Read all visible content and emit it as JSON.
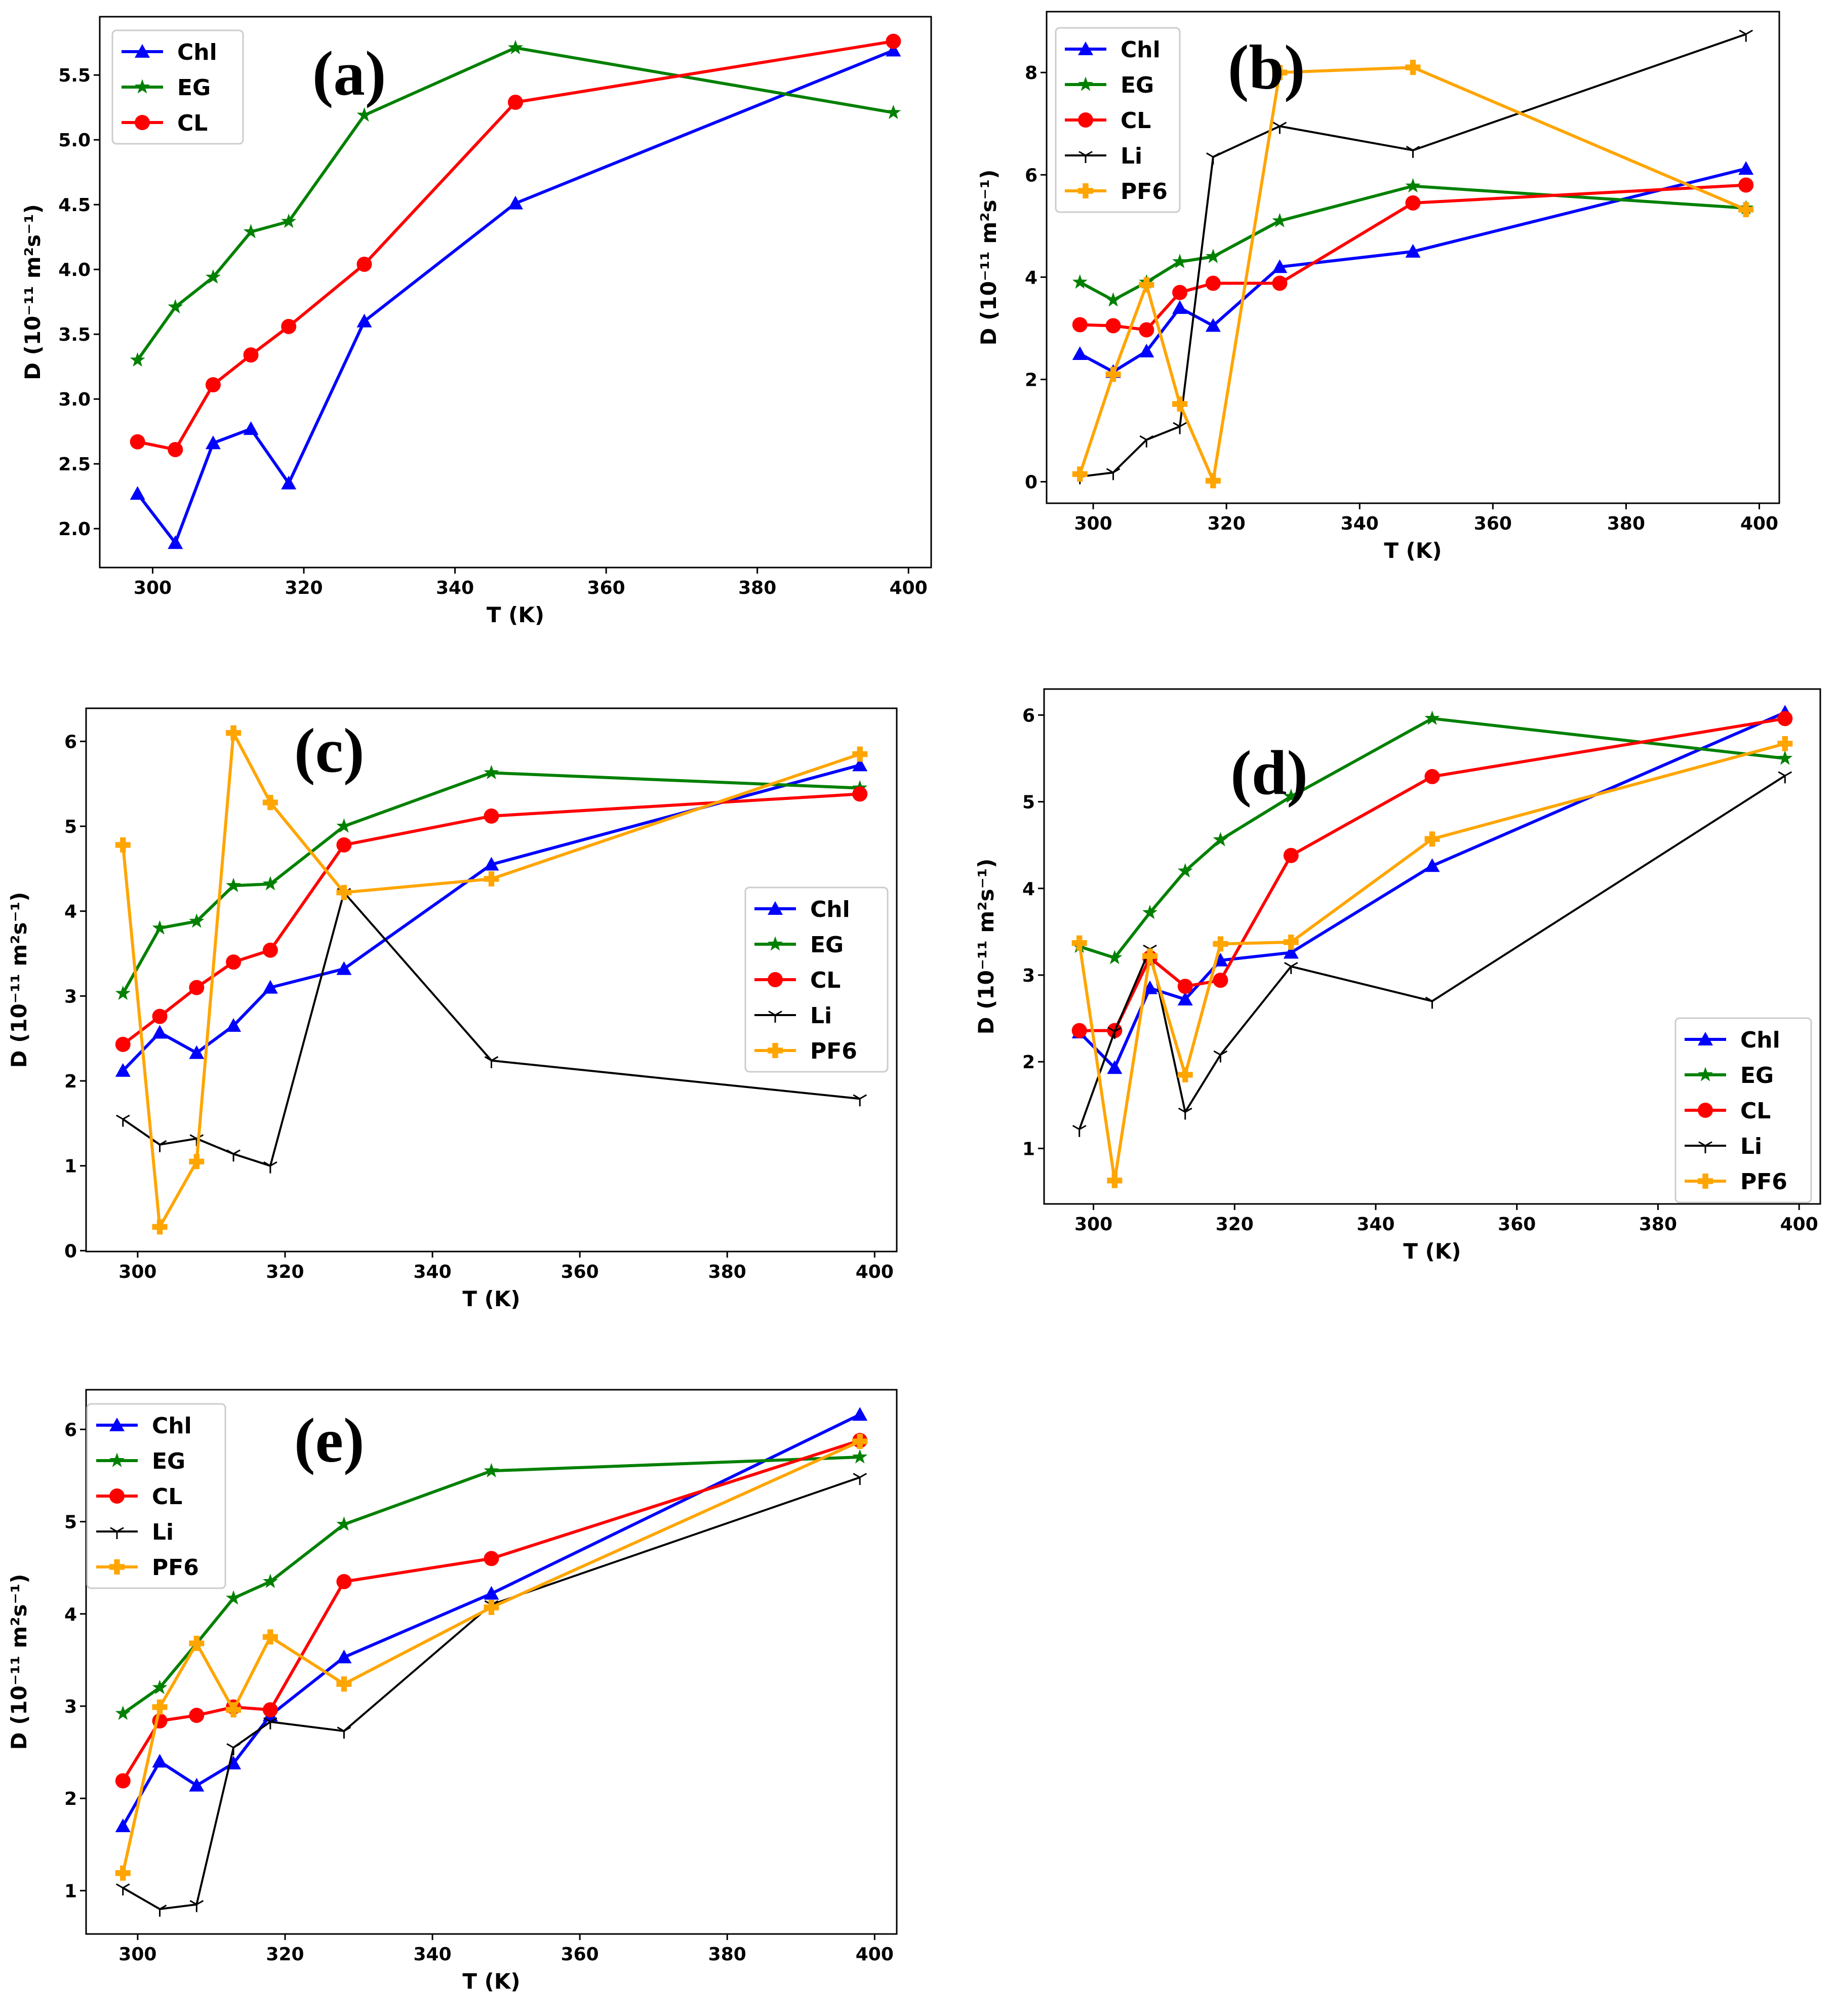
{
  "chart_data": [
    {
      "type": "line",
      "panel_label": "(a)",
      "x": [
        298,
        303,
        308,
        313,
        318,
        328,
        348,
        398
      ],
      "xlabel": "T (K)",
      "ylabel": "D (10⁻¹¹ m²s⁻¹)",
      "xlim": [
        293,
        403
      ],
      "ylim": [
        1.7,
        5.95
      ],
      "xticks": [
        300,
        320,
        340,
        360,
        380,
        400
      ],
      "xtick_labels": [
        "300",
        "320",
        "340",
        "360",
        "380",
        "400"
      ],
      "yticks": [
        2.0,
        2.5,
        3.0,
        3.5,
        4.0,
        4.5,
        5.0,
        5.5
      ],
      "ytick_labels": [
        "2.0",
        "2.5",
        "3.0",
        "3.5",
        "4.0",
        "4.5",
        "5.0",
        "5.5"
      ],
      "legend": "top-left",
      "grid": false,
      "series": [
        {
          "name": "Chl",
          "color": "#0000ff",
          "marker": "triangle",
          "values": [
            2.27,
            1.89,
            2.66,
            2.77,
            2.35,
            3.6,
            4.51,
            5.69
          ]
        },
        {
          "name": "EG",
          "color": "#008000",
          "marker": "star",
          "values": [
            3.3,
            3.71,
            3.94,
            4.29,
            4.37,
            5.19,
            5.71,
            5.21
          ]
        },
        {
          "name": "CL",
          "color": "#ff0000",
          "marker": "circle",
          "values": [
            2.67,
            2.61,
            3.11,
            3.34,
            3.56,
            4.04,
            5.29,
            5.76
          ]
        }
      ]
    },
    {
      "type": "line",
      "panel_label": "(b)",
      "x": [
        298,
        303,
        308,
        313,
        318,
        328,
        348,
        398
      ],
      "xlabel": "T (K)",
      "ylabel": "D (10⁻¹¹ m²s⁻¹)",
      "xlim": [
        293,
        403
      ],
      "ylim": [
        -0.42,
        9.19
      ],
      "xticks": [
        300,
        320,
        340,
        360,
        380,
        400
      ],
      "xtick_labels": [
        "300",
        "320",
        "340",
        "360",
        "380",
        "400"
      ],
      "yticks": [
        0,
        2,
        4,
        6,
        8
      ],
      "ytick_labels": [
        "0",
        "2",
        "4",
        "6",
        "8"
      ],
      "legend": "top-left",
      "grid": false,
      "series": [
        {
          "name": "Chl",
          "color": "#0000ff",
          "marker": "triangle",
          "values": [
            2.5,
            2.15,
            2.55,
            3.4,
            3.05,
            4.2,
            4.5,
            6.12
          ]
        },
        {
          "name": "EG",
          "color": "#008000",
          "marker": "star",
          "values": [
            3.9,
            3.55,
            3.9,
            4.3,
            4.4,
            5.1,
            5.78,
            5.35
          ]
        },
        {
          "name": "CL",
          "color": "#ff0000",
          "marker": "circle",
          "values": [
            3.07,
            3.05,
            2.97,
            3.7,
            3.88,
            3.88,
            5.45,
            5.8
          ]
        },
        {
          "name": "Li",
          "color": "#000000",
          "marker": "tri_down",
          "values": [
            0.1,
            0.18,
            0.82,
            1.08,
            6.35,
            6.95,
            6.48,
            8.75
          ]
        },
        {
          "name": "PF6",
          "color": "#ffa500",
          "marker": "plus_filled",
          "values": [
            0.15,
            2.1,
            3.85,
            1.52,
            0.02,
            8.0,
            8.1,
            5.32
          ]
        }
      ]
    },
    {
      "type": "line",
      "panel_label": "(c)",
      "x": [
        298,
        303,
        308,
        313,
        318,
        328,
        348,
        398
      ],
      "xlabel": "T (K)",
      "ylabel": "D (10⁻¹¹ m²s⁻¹)",
      "xlim": [
        293,
        403
      ],
      "ylim": [
        -0.01,
        6.39
      ],
      "xticks": [
        300,
        320,
        340,
        360,
        380,
        400
      ],
      "xtick_labels": [
        "300",
        "320",
        "340",
        "360",
        "380",
        "400"
      ],
      "yticks": [
        0,
        1,
        2,
        3,
        4,
        5,
        6
      ],
      "ytick_labels": [
        "0",
        "1",
        "2",
        "3",
        "4",
        "5",
        "6"
      ],
      "legend": "center-right",
      "grid": false,
      "series": [
        {
          "name": "Chl",
          "color": "#0000ff",
          "marker": "triangle",
          "values": [
            2.12,
            2.57,
            2.33,
            2.65,
            3.1,
            3.32,
            4.55,
            5.72
          ]
        },
        {
          "name": "EG",
          "color": "#008000",
          "marker": "star",
          "values": [
            3.03,
            3.8,
            3.88,
            4.3,
            4.32,
            5.0,
            5.63,
            5.45
          ]
        },
        {
          "name": "CL",
          "color": "#ff0000",
          "marker": "circle",
          "values": [
            2.43,
            2.76,
            3.1,
            3.4,
            3.54,
            4.78,
            5.12,
            5.38
          ]
        },
        {
          "name": "Li",
          "color": "#000000",
          "marker": "tri_down",
          "values": [
            1.55,
            1.25,
            1.32,
            1.14,
            1.0,
            4.22,
            2.24,
            1.79
          ]
        },
        {
          "name": "PF6",
          "color": "#ffa500",
          "marker": "plus_filled",
          "values": [
            4.78,
            0.28,
            1.05,
            6.1,
            5.28,
            4.22,
            4.38,
            5.85
          ]
        }
      ]
    },
    {
      "type": "line",
      "panel_label": "(d)",
      "x": [
        298,
        303,
        308,
        313,
        318,
        328,
        348,
        398
      ],
      "xlabel": "T (K)",
      "ylabel": "D (10⁻¹¹ m²s⁻¹)",
      "xlim": [
        293,
        403
      ],
      "ylim": [
        0.36,
        6.3
      ],
      "xticks": [
        300,
        320,
        340,
        360,
        380,
        400
      ],
      "xtick_labels": [
        "300",
        "320",
        "340",
        "360",
        "380",
        "400"
      ],
      "yticks": [
        1,
        2,
        3,
        4,
        5,
        6
      ],
      "ytick_labels": [
        "1",
        "2",
        "3",
        "4",
        "5",
        "6"
      ],
      "legend": "lower-right",
      "grid": false,
      "series": [
        {
          "name": "Chl",
          "color": "#0000ff",
          "marker": "triangle",
          "values": [
            2.34,
            1.93,
            2.85,
            2.72,
            3.17,
            3.26,
            4.26,
            6.03
          ]
        },
        {
          "name": "EG",
          "color": "#008000",
          "marker": "star",
          "values": [
            3.33,
            3.2,
            3.72,
            4.2,
            4.56,
            5.06,
            5.96,
            5.5
          ]
        },
        {
          "name": "CL",
          "color": "#ff0000",
          "marker": "circle",
          "values": [
            2.36,
            2.36,
            3.2,
            2.87,
            2.94,
            4.38,
            5.29,
            5.96
          ]
        },
        {
          "name": "Li",
          "color": "#000000",
          "marker": "tri_down",
          "values": [
            1.22,
            2.35,
            3.3,
            1.42,
            2.08,
            3.1,
            2.7,
            5.3
          ]
        },
        {
          "name": "PF6",
          "color": "#ffa500",
          "marker": "plus_filled",
          "values": [
            3.37,
            0.63,
            3.22,
            1.85,
            3.36,
            3.38,
            4.57,
            5.67
          ]
        }
      ]
    },
    {
      "type": "line",
      "panel_label": "(e)",
      "x": [
        298,
        303,
        308,
        313,
        318,
        328,
        348,
        398
      ],
      "xlabel": "T (K)",
      "ylabel": "D (10⁻¹¹ m²s⁻¹)",
      "xlim": [
        293,
        403
      ],
      "ylim": [
        0.53,
        6.43
      ],
      "xticks": [
        300,
        320,
        340,
        360,
        380,
        400
      ],
      "xtick_labels": [
        "300",
        "320",
        "340",
        "360",
        "380",
        "400"
      ],
      "yticks": [
        1,
        2,
        3,
        4,
        5,
        6
      ],
      "ytick_labels": [
        "1",
        "2",
        "3",
        "4",
        "5",
        "6"
      ],
      "legend": "top-left",
      "grid": false,
      "series": [
        {
          "name": "Chl",
          "color": "#0000ff",
          "marker": "triangle",
          "values": [
            1.7,
            2.4,
            2.14,
            2.38,
            2.9,
            3.53,
            4.22,
            6.16
          ]
        },
        {
          "name": "EG",
          "color": "#008000",
          "marker": "star",
          "values": [
            2.92,
            3.2,
            3.68,
            4.17,
            4.35,
            4.97,
            5.55,
            5.7
          ]
        },
        {
          "name": "CL",
          "color": "#ff0000",
          "marker": "circle",
          "values": [
            2.19,
            2.84,
            2.9,
            2.99,
            2.96,
            4.35,
            4.6,
            5.88
          ]
        },
        {
          "name": "Li",
          "color": "#000000",
          "marker": "tri_down",
          "values": [
            1.03,
            0.8,
            0.85,
            2.55,
            2.83,
            2.73,
            4.1,
            5.48
          ]
        },
        {
          "name": "PF6",
          "color": "#ffa500",
          "marker": "plus_filled",
          "values": [
            1.19,
            2.99,
            3.68,
            2.96,
            3.75,
            3.24,
            4.07,
            5.87
          ]
        }
      ]
    }
  ]
}
